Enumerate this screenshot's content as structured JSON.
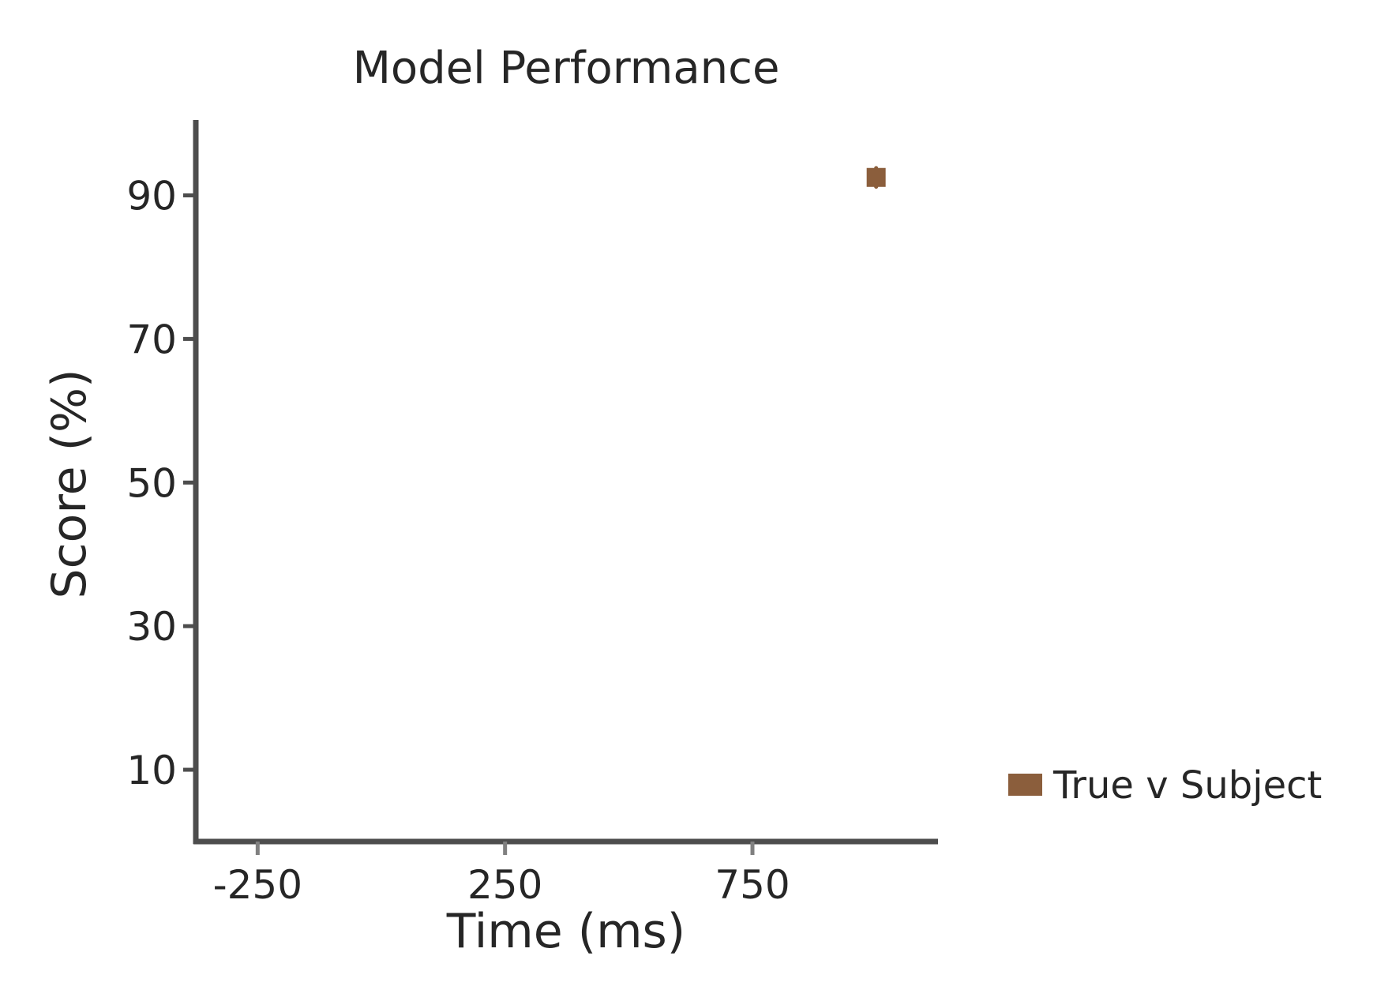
{
  "chart_data": {
    "type": "scatter",
    "title": "Model Performance",
    "xlabel": "Time (ms)",
    "ylabel": "Score (%)",
    "xlim": [
      -375,
      1125
    ],
    "ylim": [
      0,
      100.5
    ],
    "x_ticks": [
      -250,
      250,
      750
    ],
    "y_ticks": [
      10,
      30,
      50,
      70,
      90
    ],
    "grid": false,
    "legend_position": "right",
    "series": [
      {
        "name": "True v Subject",
        "color": "#8B5E3C",
        "marker": "square",
        "points": [
          {
            "x": 1000,
            "y": 92.5,
            "y_low": 91.2,
            "y_high": 93.8
          }
        ]
      }
    ]
  },
  "colors": {
    "axis": "#4d4d4d",
    "tick": "#808080",
    "text": "#262626"
  }
}
